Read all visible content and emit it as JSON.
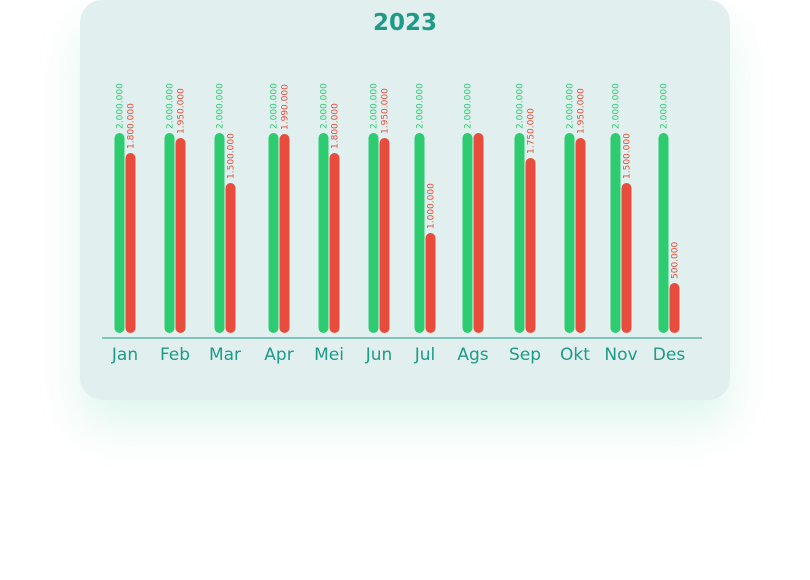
{
  "chart_data": {
    "type": "bar",
    "title": "2023",
    "categories": [
      "Jan",
      "Feb",
      "Mar",
      "Apr",
      "Mei",
      "Jun",
      "Jul",
      "Ags",
      "Sep",
      "Okt",
      "Nov",
      "Des"
    ],
    "series": [
      {
        "color": "#2ecc71",
        "values": [
          2000000,
          2000000,
          2000000,
          2000000,
          2000000,
          2000000,
          2000000,
          2000000,
          2000000,
          2000000,
          2000000,
          2000000
        ],
        "labels": [
          "2.000.000",
          "2.000.000",
          "2.000.000",
          "2.000.000",
          "2.000.000",
          "2.000.000",
          "2.000.000",
          "2.000.000",
          "2.000.000",
          "2.000.000",
          "2.000.000",
          "2.000.000"
        ]
      },
      {
        "color": "#e74c3c",
        "values": [
          1800000,
          1950000,
          1500000,
          1990000,
          1800000,
          1950000,
          1000000,
          2000000,
          1750000,
          1950000,
          1500000,
          500000
        ],
        "labels": [
          "1.800.000",
          "1.950.000",
          "1.500.000",
          "1.990.000",
          "1.800.000",
          "1.950.000",
          "1.000.000",
          "",
          "1.750.000",
          "1.950.000",
          "1.500.000",
          "500.000"
        ]
      }
    ],
    "ylim": [
      0,
      2000000
    ],
    "grid": false,
    "legend": "none",
    "axis_color": "#1e9a88",
    "tick_label_color": "#1e9a88"
  }
}
